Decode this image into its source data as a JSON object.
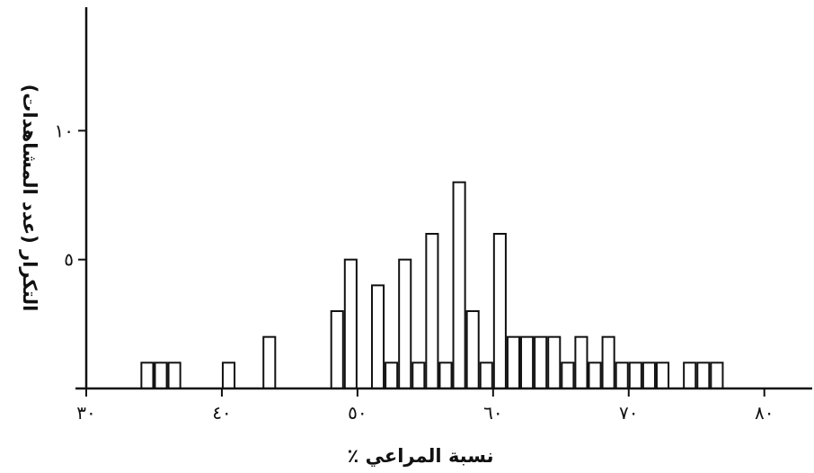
{
  "chart_data": {
    "type": "bar",
    "title": "",
    "xlabel": "نسبة المراعي ٪",
    "ylabel": "التكرار (عدد المشاهدات)",
    "xlim": [
      30,
      83
    ],
    "ylim": [
      0,
      15
    ],
    "grid": false,
    "x_ticks": [
      {
        "value": 30,
        "label": "٣٠"
      },
      {
        "value": 40,
        "label": "٤٠"
      },
      {
        "value": 50,
        "label": "٥٠"
      },
      {
        "value": 60,
        "label": "٦٠"
      },
      {
        "value": 70,
        "label": "٧٠"
      },
      {
        "value": 80,
        "label": "٨٠"
      }
    ],
    "y_ticks": [
      {
        "value": 5,
        "label": "٥"
      },
      {
        "value": 10,
        "label": "١٠"
      }
    ],
    "bin_width": 1,
    "bins_start": [
      34,
      35,
      36,
      40,
      43,
      48,
      49,
      51,
      52,
      53,
      54,
      55,
      56,
      57,
      58,
      59,
      60,
      61,
      62,
      63,
      64,
      65,
      66,
      67,
      68,
      69,
      70,
      71,
      72,
      74,
      75,
      76
    ],
    "bins_end": [
      35,
      36,
      37,
      41,
      44,
      49,
      50,
      52,
      53,
      54,
      55,
      56,
      57,
      58,
      59,
      60,
      61,
      62,
      63,
      64,
      65,
      66,
      67,
      68,
      69,
      70,
      71,
      72,
      73,
      75,
      76,
      77
    ],
    "values": [
      1,
      1,
      1,
      1,
      2,
      3,
      5,
      4,
      1,
      5,
      1,
      6,
      1,
      8,
      3,
      1,
      6,
      2,
      2,
      2,
      2,
      1,
      2,
      1,
      2,
      1,
      1,
      1,
      1,
      1,
      1,
      1
    ]
  }
}
